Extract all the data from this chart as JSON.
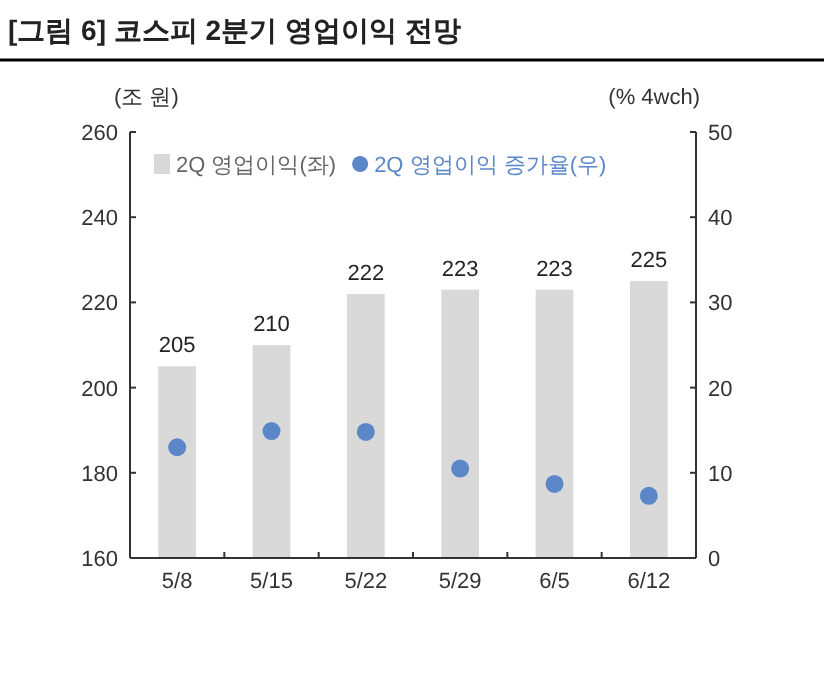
{
  "chart_data": {
    "type": "bar",
    "title": "[그림 6] 코스피 2분기 영업이익 전망",
    "ylabel": "(조 원)",
    "y2label": "(% 4wch)",
    "categories": [
      "5/8",
      "5/15",
      "5/22",
      "5/29",
      "6/5",
      "6/12"
    ],
    "series": [
      {
        "name": "2Q 영업이익(좌)",
        "color": "#d9d9d9",
        "values": [
          205,
          210,
          222,
          223,
          223,
          225
        ],
        "data_labels": true
      },
      {
        "name": "2Q 영업이익 증가율(우)",
        "type": "scatter",
        "axis": "y2",
        "color": "#5b87c9",
        "marker": "circle",
        "values": [
          13.0,
          14.9,
          14.8,
          10.5,
          8.7,
          7.3
        ]
      }
    ],
    "ylim": [
      160,
      260
    ],
    "yticks": [
      160,
      180,
      200,
      220,
      240,
      260
    ],
    "y2lim": [
      0,
      50
    ],
    "y2ticks": [
      0,
      10,
      20,
      30,
      40,
      50
    ],
    "legend": "top",
    "grid": false
  }
}
